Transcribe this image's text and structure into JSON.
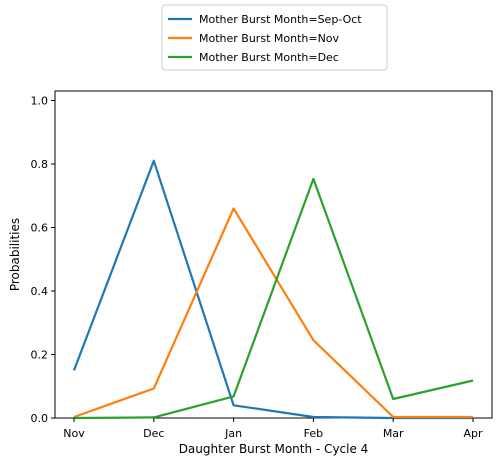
{
  "chart_data": {
    "type": "line",
    "title": "",
    "xlabel": "Daughter Burst Month - Cycle 4",
    "ylabel": "Probabilities",
    "categories": [
      "Nov",
      "Dec",
      "Jan",
      "Feb",
      "Mar",
      "Apr"
    ],
    "ylim": [
      0,
      1.03
    ],
    "yticks": [
      "0.0",
      "0.2",
      "0.4",
      "0.6",
      "0.8",
      "1.0"
    ],
    "grid": false,
    "legend_position": "top-center",
    "series": [
      {
        "name": "Mother Burst Month=Sep-Oct",
        "color": "#1f77b4",
        "values": [
          0.15,
          0.81,
          0.04,
          0.003,
          0.0,
          0.0
        ]
      },
      {
        "name": "Mother Burst Month=Nov",
        "color": "#ff7f0e",
        "values": [
          0.003,
          0.093,
          0.66,
          0.245,
          0.003,
          0.003
        ]
      },
      {
        "name": "Mother Burst Month=Dec",
        "color": "#2ca02c",
        "values": [
          0.0,
          0.002,
          0.068,
          0.753,
          0.06,
          0.118
        ]
      }
    ]
  }
}
